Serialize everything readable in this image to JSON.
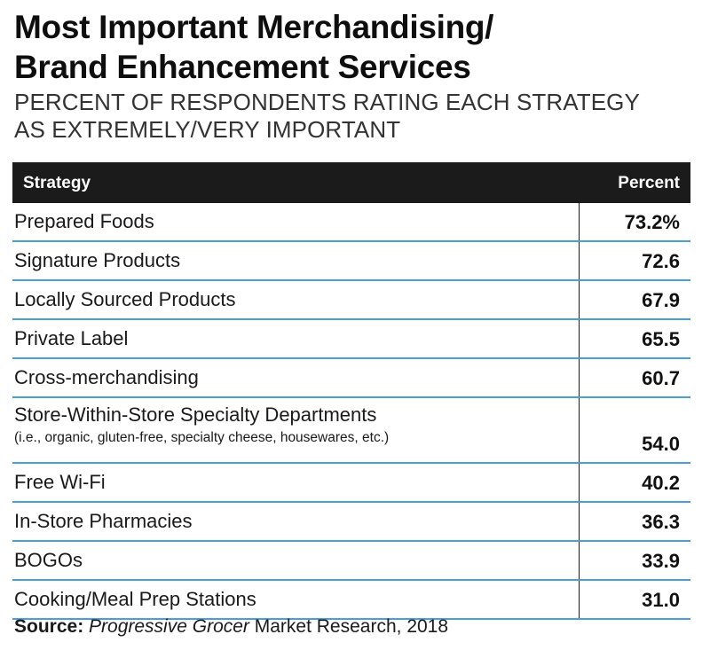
{
  "title_line1": "Most Important Merchandising/",
  "title_line2": "Brand Enhancement Services",
  "subtitle_line1": "PERCENT OF RESPONDENTS RATING EACH STRATEGY",
  "subtitle_line2": "AS EXTREMELY/VERY IMPORTANT",
  "source": {
    "label": "Source:",
    "publication": "Progressive Grocer",
    "rest": " Market Research, 2018"
  },
  "colors": {
    "header_bg": "#1b1b1b",
    "row_rule": "#4a9fd3"
  },
  "chart_data": {
    "type": "table",
    "columns": [
      "Strategy",
      "Percent"
    ],
    "rows": [
      {
        "strategy": "Prepared Foods",
        "detail": "",
        "percent": "73.2%",
        "value": 73.2
      },
      {
        "strategy": "Signature Products",
        "detail": "",
        "percent": "72.6",
        "value": 72.6
      },
      {
        "strategy": "Locally Sourced Products",
        "detail": "",
        "percent": "67.9",
        "value": 67.9
      },
      {
        "strategy": "Private Label",
        "detail": "",
        "percent": "65.5",
        "value": 65.5
      },
      {
        "strategy": "Cross-merchandising",
        "detail": "",
        "percent": "60.7",
        "value": 60.7
      },
      {
        "strategy": "Store-Within-Store Specialty Departments",
        "detail": "(i.e., organic, gluten-free, specialty cheese, housewares, etc.)",
        "percent": "54.0",
        "value": 54.0
      },
      {
        "strategy": "Free Wi-Fi",
        "detail": "",
        "percent": "40.2",
        "value": 40.2
      },
      {
        "strategy": "In-Store Pharmacies",
        "detail": "",
        "percent": "36.3",
        "value": 36.3
      },
      {
        "strategy": "BOGOs",
        "detail": "",
        "percent": "33.9",
        "value": 33.9
      },
      {
        "strategy": "Cooking/Meal Prep Stations",
        "detail": "",
        "percent": "31.0",
        "value": 31.0
      }
    ]
  }
}
